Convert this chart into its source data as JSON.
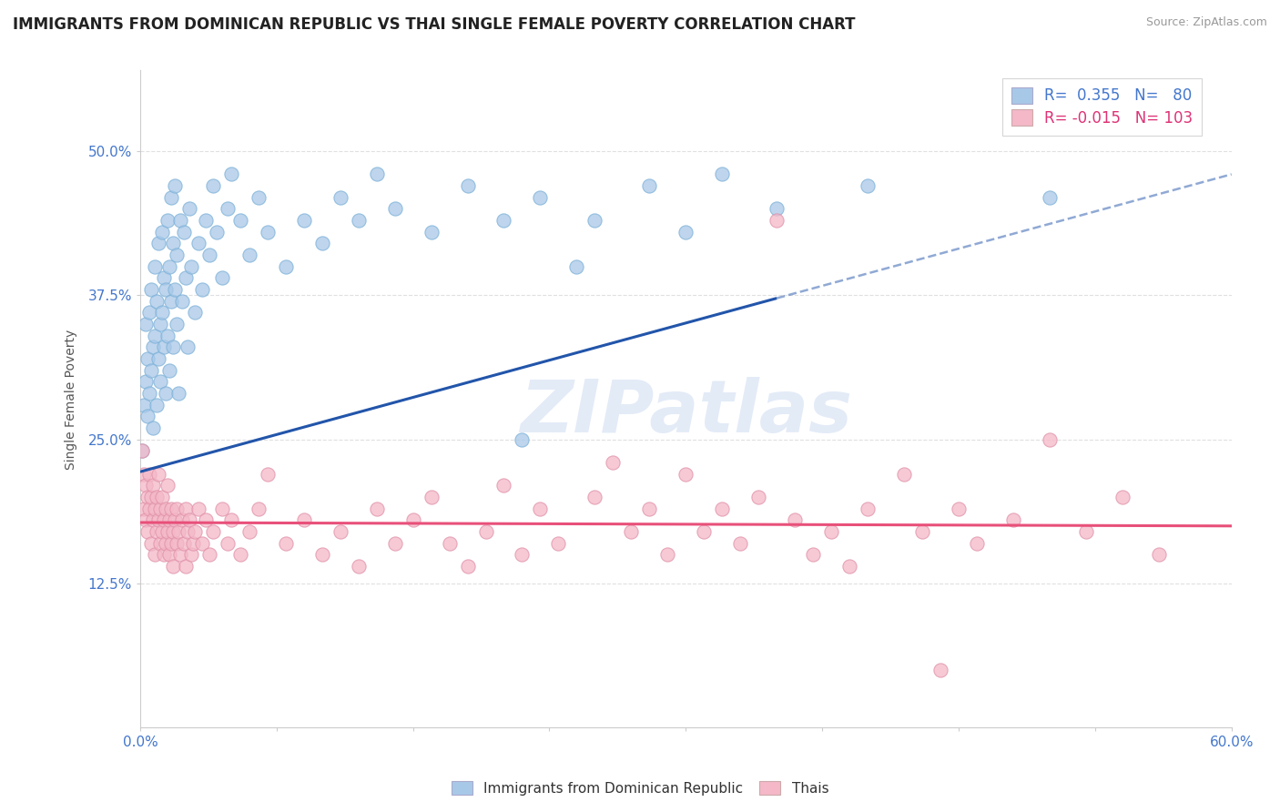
{
  "title": "IMMIGRANTS FROM DOMINICAN REPUBLIC VS THAI SINGLE FEMALE POVERTY CORRELATION CHART",
  "source": "Source: ZipAtlas.com",
  "ylabel": "Single Female Poverty",
  "y_ticks": [
    "12.5%",
    "25.0%",
    "37.5%",
    "50.0%"
  ],
  "y_tick_vals": [
    0.125,
    0.25,
    0.375,
    0.5
  ],
  "x_range": [
    0.0,
    0.6
  ],
  "y_range": [
    0.0,
    0.57
  ],
  "legend_r1": "R=  0.355",
  "legend_n1": "N=  80",
  "legend_r2": "R= -0.015",
  "legend_n2": "N= 103",
  "legend_label1": "Immigrants from Dominican Republic",
  "legend_label2": "Thais",
  "blue_color": "#a8c8e8",
  "pink_color": "#f4b8c8",
  "blue_line_color": "#2255aa",
  "pink_line_color": "#e8507a",
  "blue_scatter": [
    [
      0.001,
      0.24
    ],
    [
      0.002,
      0.28
    ],
    [
      0.003,
      0.3
    ],
    [
      0.003,
      0.35
    ],
    [
      0.004,
      0.27
    ],
    [
      0.004,
      0.32
    ],
    [
      0.005,
      0.29
    ],
    [
      0.005,
      0.36
    ],
    [
      0.006,
      0.31
    ],
    [
      0.006,
      0.38
    ],
    [
      0.007,
      0.26
    ],
    [
      0.007,
      0.33
    ],
    [
      0.008,
      0.34
    ],
    [
      0.008,
      0.4
    ],
    [
      0.009,
      0.28
    ],
    [
      0.009,
      0.37
    ],
    [
      0.01,
      0.32
    ],
    [
      0.01,
      0.42
    ],
    [
      0.011,
      0.3
    ],
    [
      0.011,
      0.35
    ],
    [
      0.012,
      0.36
    ],
    [
      0.012,
      0.43
    ],
    [
      0.013,
      0.33
    ],
    [
      0.013,
      0.39
    ],
    [
      0.014,
      0.29
    ],
    [
      0.014,
      0.38
    ],
    [
      0.015,
      0.34
    ],
    [
      0.015,
      0.44
    ],
    [
      0.016,
      0.31
    ],
    [
      0.016,
      0.4
    ],
    [
      0.017,
      0.37
    ],
    [
      0.017,
      0.46
    ],
    [
      0.018,
      0.33
    ],
    [
      0.018,
      0.42
    ],
    [
      0.019,
      0.38
    ],
    [
      0.019,
      0.47
    ],
    [
      0.02,
      0.35
    ],
    [
      0.02,
      0.41
    ],
    [
      0.021,
      0.29
    ],
    [
      0.022,
      0.44
    ],
    [
      0.023,
      0.37
    ],
    [
      0.024,
      0.43
    ],
    [
      0.025,
      0.39
    ],
    [
      0.026,
      0.33
    ],
    [
      0.027,
      0.45
    ],
    [
      0.028,
      0.4
    ],
    [
      0.03,
      0.36
    ],
    [
      0.032,
      0.42
    ],
    [
      0.034,
      0.38
    ],
    [
      0.036,
      0.44
    ],
    [
      0.038,
      0.41
    ],
    [
      0.04,
      0.47
    ],
    [
      0.042,
      0.43
    ],
    [
      0.045,
      0.39
    ],
    [
      0.048,
      0.45
    ],
    [
      0.05,
      0.48
    ],
    [
      0.055,
      0.44
    ],
    [
      0.06,
      0.41
    ],
    [
      0.065,
      0.46
    ],
    [
      0.07,
      0.43
    ],
    [
      0.08,
      0.4
    ],
    [
      0.09,
      0.44
    ],
    [
      0.1,
      0.42
    ],
    [
      0.11,
      0.46
    ],
    [
      0.12,
      0.44
    ],
    [
      0.13,
      0.48
    ],
    [
      0.14,
      0.45
    ],
    [
      0.16,
      0.43
    ],
    [
      0.18,
      0.47
    ],
    [
      0.2,
      0.44
    ],
    [
      0.21,
      0.25
    ],
    [
      0.22,
      0.46
    ],
    [
      0.24,
      0.4
    ],
    [
      0.25,
      0.44
    ],
    [
      0.28,
      0.47
    ],
    [
      0.3,
      0.43
    ],
    [
      0.32,
      0.48
    ],
    [
      0.35,
      0.45
    ],
    [
      0.4,
      0.47
    ],
    [
      0.5,
      0.46
    ]
  ],
  "pink_scatter": [
    [
      0.001,
      0.24
    ],
    [
      0.002,
      0.22
    ],
    [
      0.002,
      0.19
    ],
    [
      0.003,
      0.21
    ],
    [
      0.003,
      0.18
    ],
    [
      0.004,
      0.2
    ],
    [
      0.004,
      0.17
    ],
    [
      0.005,
      0.22
    ],
    [
      0.005,
      0.19
    ],
    [
      0.006,
      0.2
    ],
    [
      0.006,
      0.16
    ],
    [
      0.007,
      0.21
    ],
    [
      0.007,
      0.18
    ],
    [
      0.008,
      0.19
    ],
    [
      0.008,
      0.15
    ],
    [
      0.009,
      0.2
    ],
    [
      0.009,
      0.17
    ],
    [
      0.01,
      0.18
    ],
    [
      0.01,
      0.22
    ],
    [
      0.011,
      0.19
    ],
    [
      0.011,
      0.16
    ],
    [
      0.012,
      0.2
    ],
    [
      0.012,
      0.17
    ],
    [
      0.013,
      0.18
    ],
    [
      0.013,
      0.15
    ],
    [
      0.014,
      0.19
    ],
    [
      0.014,
      0.16
    ],
    [
      0.015,
      0.17
    ],
    [
      0.015,
      0.21
    ],
    [
      0.016,
      0.18
    ],
    [
      0.016,
      0.15
    ],
    [
      0.017,
      0.19
    ],
    [
      0.017,
      0.16
    ],
    [
      0.018,
      0.17
    ],
    [
      0.018,
      0.14
    ],
    [
      0.019,
      0.18
    ],
    [
      0.02,
      0.19
    ],
    [
      0.02,
      0.16
    ],
    [
      0.021,
      0.17
    ],
    [
      0.022,
      0.15
    ],
    [
      0.023,
      0.18
    ],
    [
      0.024,
      0.16
    ],
    [
      0.025,
      0.19
    ],
    [
      0.025,
      0.14
    ],
    [
      0.026,
      0.17
    ],
    [
      0.027,
      0.18
    ],
    [
      0.028,
      0.15
    ],
    [
      0.029,
      0.16
    ],
    [
      0.03,
      0.17
    ],
    [
      0.032,
      0.19
    ],
    [
      0.034,
      0.16
    ],
    [
      0.036,
      0.18
    ],
    [
      0.038,
      0.15
    ],
    [
      0.04,
      0.17
    ],
    [
      0.045,
      0.19
    ],
    [
      0.048,
      0.16
    ],
    [
      0.05,
      0.18
    ],
    [
      0.055,
      0.15
    ],
    [
      0.06,
      0.17
    ],
    [
      0.065,
      0.19
    ],
    [
      0.07,
      0.22
    ],
    [
      0.08,
      0.16
    ],
    [
      0.09,
      0.18
    ],
    [
      0.1,
      0.15
    ],
    [
      0.11,
      0.17
    ],
    [
      0.12,
      0.14
    ],
    [
      0.13,
      0.19
    ],
    [
      0.14,
      0.16
    ],
    [
      0.15,
      0.18
    ],
    [
      0.16,
      0.2
    ],
    [
      0.17,
      0.16
    ],
    [
      0.18,
      0.14
    ],
    [
      0.19,
      0.17
    ],
    [
      0.2,
      0.21
    ],
    [
      0.21,
      0.15
    ],
    [
      0.22,
      0.19
    ],
    [
      0.23,
      0.16
    ],
    [
      0.25,
      0.2
    ],
    [
      0.26,
      0.23
    ],
    [
      0.27,
      0.17
    ],
    [
      0.28,
      0.19
    ],
    [
      0.29,
      0.15
    ],
    [
      0.3,
      0.22
    ],
    [
      0.31,
      0.17
    ],
    [
      0.32,
      0.19
    ],
    [
      0.33,
      0.16
    ],
    [
      0.34,
      0.2
    ],
    [
      0.35,
      0.44
    ],
    [
      0.36,
      0.18
    ],
    [
      0.37,
      0.15
    ],
    [
      0.38,
      0.17
    ],
    [
      0.39,
      0.14
    ],
    [
      0.4,
      0.19
    ],
    [
      0.42,
      0.22
    ],
    [
      0.43,
      0.17
    ],
    [
      0.44,
      0.05
    ],
    [
      0.45,
      0.19
    ],
    [
      0.46,
      0.16
    ],
    [
      0.48,
      0.18
    ],
    [
      0.5,
      0.25
    ],
    [
      0.52,
      0.17
    ],
    [
      0.54,
      0.2
    ],
    [
      0.56,
      0.15
    ]
  ],
  "background_color": "#ffffff",
  "grid_color": "#e0e0e0",
  "watermark_text": "ZIPatlas",
  "title_fontsize": 12,
  "axis_fontsize": 10,
  "tick_fontsize": 11,
  "blue_trend_x_solid_end": 0.35,
  "blue_trend_intercept": 0.222,
  "blue_trend_slope": 0.43,
  "pink_trend_intercept": 0.178,
  "pink_trend_slope": -0.005
}
